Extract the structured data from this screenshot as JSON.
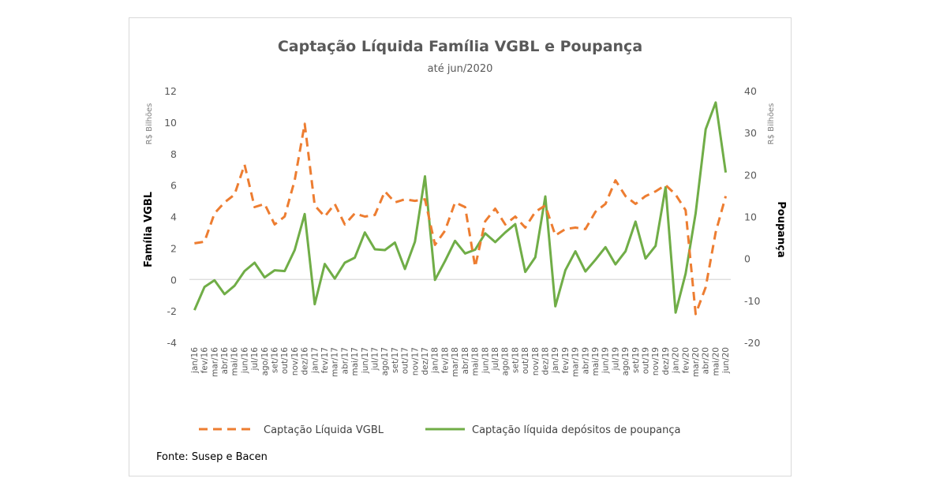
{
  "chart_data": {
    "type": "line",
    "title": "Captação Líquida Família VGBL e Poupança",
    "subtitle": "até jun/2020",
    "source": "Fonte: Susep e Bacen",
    "y_left": {
      "label": "Família VGBL",
      "unit": "R$ Bilhões",
      "range": [
        -4,
        12
      ],
      "ticks": [
        -4,
        -2,
        0,
        2,
        4,
        6,
        8,
        10,
        12
      ]
    },
    "y_right": {
      "label": "Poupança",
      "unit": "R$ Bilhões",
      "range": [
        -20,
        40
      ],
      "ticks": [
        -20,
        -10,
        0,
        10,
        20,
        30,
        40
      ]
    },
    "categories": [
      "jan/16",
      "fev/16",
      "mar/16",
      "abr/16",
      "mai/16",
      "jun/16",
      "jul/16",
      "ago/16",
      "set/16",
      "out/16",
      "nov/16",
      "dez/16",
      "jan/17",
      "fev/17",
      "mar/17",
      "abr/17",
      "mai/17",
      "jun/17",
      "jul/17",
      "ago/17",
      "set/17",
      "out/17",
      "nov/17",
      "dez/17",
      "jan/18",
      "fev/18",
      "mar/18",
      "abr/18",
      "mai/18",
      "jun/18",
      "jul/18",
      "ago/18",
      "set/18",
      "out/18",
      "nov/18",
      "dez/18",
      "jan/19",
      "fev/19",
      "mar/19",
      "abr/19",
      "mai/19",
      "jun/19",
      "jul/19",
      "ago/19",
      "set/19",
      "out/19",
      "nov/19",
      "dez/19",
      "jan/20",
      "fev/20",
      "mar/20",
      "abr/20",
      "mai/20",
      "jun/20"
    ],
    "series": [
      {
        "name": "Captação Líquida VGBL",
        "axis": "left",
        "color": "#ed7d31",
        "style": "dashed",
        "values": [
          2.3,
          2.4,
          4.2,
          4.9,
          5.4,
          7.3,
          4.6,
          4.8,
          3.5,
          4.0,
          6.3,
          9.9,
          4.7,
          4.0,
          4.8,
          3.5,
          4.2,
          4.0,
          4.1,
          5.6,
          4.9,
          5.1,
          5.0,
          5.1,
          2.2,
          3.1,
          4.9,
          4.6,
          0.8,
          3.7,
          4.5,
          3.5,
          4.0,
          3.3,
          4.3,
          4.7,
          2.8,
          3.2,
          3.3,
          3.2,
          4.3,
          4.8,
          6.3,
          5.3,
          4.8,
          5.3,
          5.6,
          6.0,
          5.4,
          4.4,
          -2.2,
          -0.5,
          3.0,
          5.3
        ]
      },
      {
        "name": "Captação líquida depósitos de poupança",
        "axis": "right",
        "color": "#70ad47",
        "style": "solid",
        "values": [
          -12.3,
          -6.8,
          -5.2,
          -8.5,
          -6.5,
          -3.0,
          -1.0,
          -4.5,
          -2.8,
          -3.0,
          2.0,
          10.6,
          -10.9,
          -1.3,
          -4.8,
          -1.0,
          0.2,
          6.2,
          2.2,
          2.0,
          3.8,
          -2.5,
          4.0,
          19.6,
          -5.1,
          -0.6,
          4.2,
          1.2,
          2.1,
          6.0,
          3.9,
          6.2,
          8.2,
          -3.2,
          0.3,
          14.8,
          -11.4,
          -2.8,
          1.7,
          -3.1,
          -0.3,
          2.7,
          -1.4,
          1.7,
          8.8,
          0.0,
          3.0,
          17.0,
          -12.9,
          -3.6,
          10.8,
          30.8,
          37.2,
          20.5
        ]
      }
    ],
    "legend": {
      "position": "bottom"
    },
    "grid": {
      "zero_line": true
    }
  }
}
